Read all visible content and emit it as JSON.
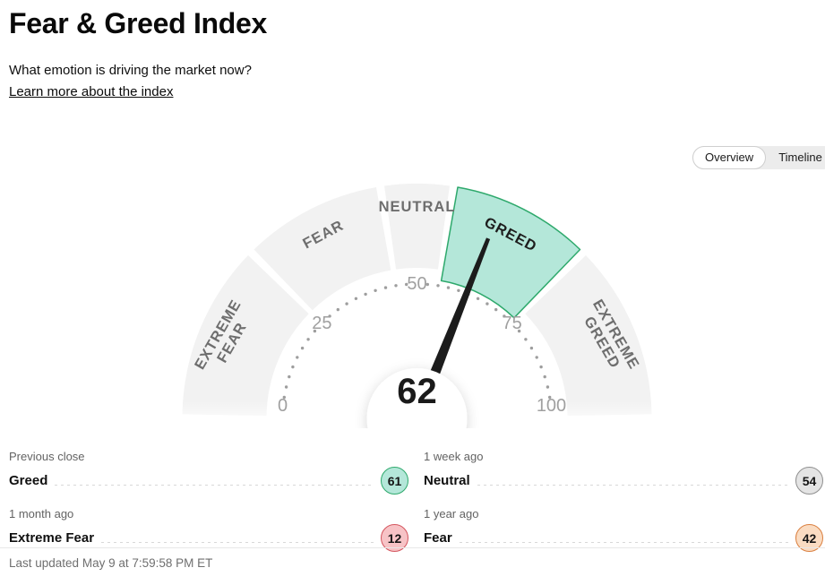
{
  "header": {
    "title": "Fear & Greed Index",
    "subtitle": "What emotion is driving the market now?",
    "link": "Learn more about the index"
  },
  "tabs": {
    "overview": "Overview",
    "timeline": "Timeline"
  },
  "gauge": {
    "value": "62",
    "tick_labels": [
      "0",
      "25",
      "50",
      "75",
      "100"
    ],
    "segments": [
      {
        "line1": "EXTREME",
        "line2": "FEAR"
      },
      {
        "line1": "FEAR"
      },
      {
        "line1": "NEUTRAL"
      },
      {
        "line1": "GREED"
      },
      {
        "line1": "EXTREME",
        "line2": "GREED"
      }
    ]
  },
  "history": [
    {
      "period": "Previous close",
      "label": "Greed",
      "value": "61",
      "tone": "teal"
    },
    {
      "period": "1 week ago",
      "label": "Neutral",
      "value": "54",
      "tone": "gray"
    },
    {
      "period": "1 month ago",
      "label": "Extreme Fear",
      "value": "12",
      "tone": "red"
    },
    {
      "period": "1 year ago",
      "label": "Fear",
      "value": "42",
      "tone": "orange"
    }
  ],
  "footer": {
    "last_updated": "Last updated May 9 at 7:59:58 PM ET"
  },
  "colors": {
    "active_segment_fill": "#b4e7d9",
    "active_segment_border": "#2ea96c",
    "segment_gray": "#f2f2f2",
    "segment_label_gray": "#6e6e6e",
    "segment_label_active": "#1d1d1d",
    "tick_gray": "#a0a0a0",
    "needle": "#1c1c1c",
    "badge_gray_fill": "#e4e4e4",
    "badge_gray_border": "#8f8f8f",
    "badge_red_fill": "#f7c3c6",
    "badge_red_border": "#d4555e",
    "badge_orange_fill": "#fadcc2",
    "badge_orange_border": "#da7f3f"
  },
  "chart_data": {
    "type": "gauge",
    "title": "Fear & Greed Index",
    "value": 62,
    "min": 0,
    "max": 100,
    "ticks": [
      0,
      25,
      50,
      75,
      100
    ],
    "segments": [
      {
        "label": "Extreme Fear",
        "range": [
          0,
          25
        ]
      },
      {
        "label": "Fear",
        "range": [
          25,
          45
        ]
      },
      {
        "label": "Neutral",
        "range": [
          45,
          55
        ]
      },
      {
        "label": "Greed",
        "range": [
          55,
          75
        ],
        "highlighted": true
      },
      {
        "label": "Extreme Greed",
        "range": [
          75,
          100
        ]
      }
    ],
    "current_label": "Greed",
    "history": [
      {
        "period": "Previous close",
        "label": "Greed",
        "value": 61
      },
      {
        "period": "1 week ago",
        "label": "Neutral",
        "value": 54
      },
      {
        "period": "1 month ago",
        "label": "Extreme Fear",
        "value": 12
      },
      {
        "period": "1 year ago",
        "label": "Fear",
        "value": 42
      }
    ]
  }
}
